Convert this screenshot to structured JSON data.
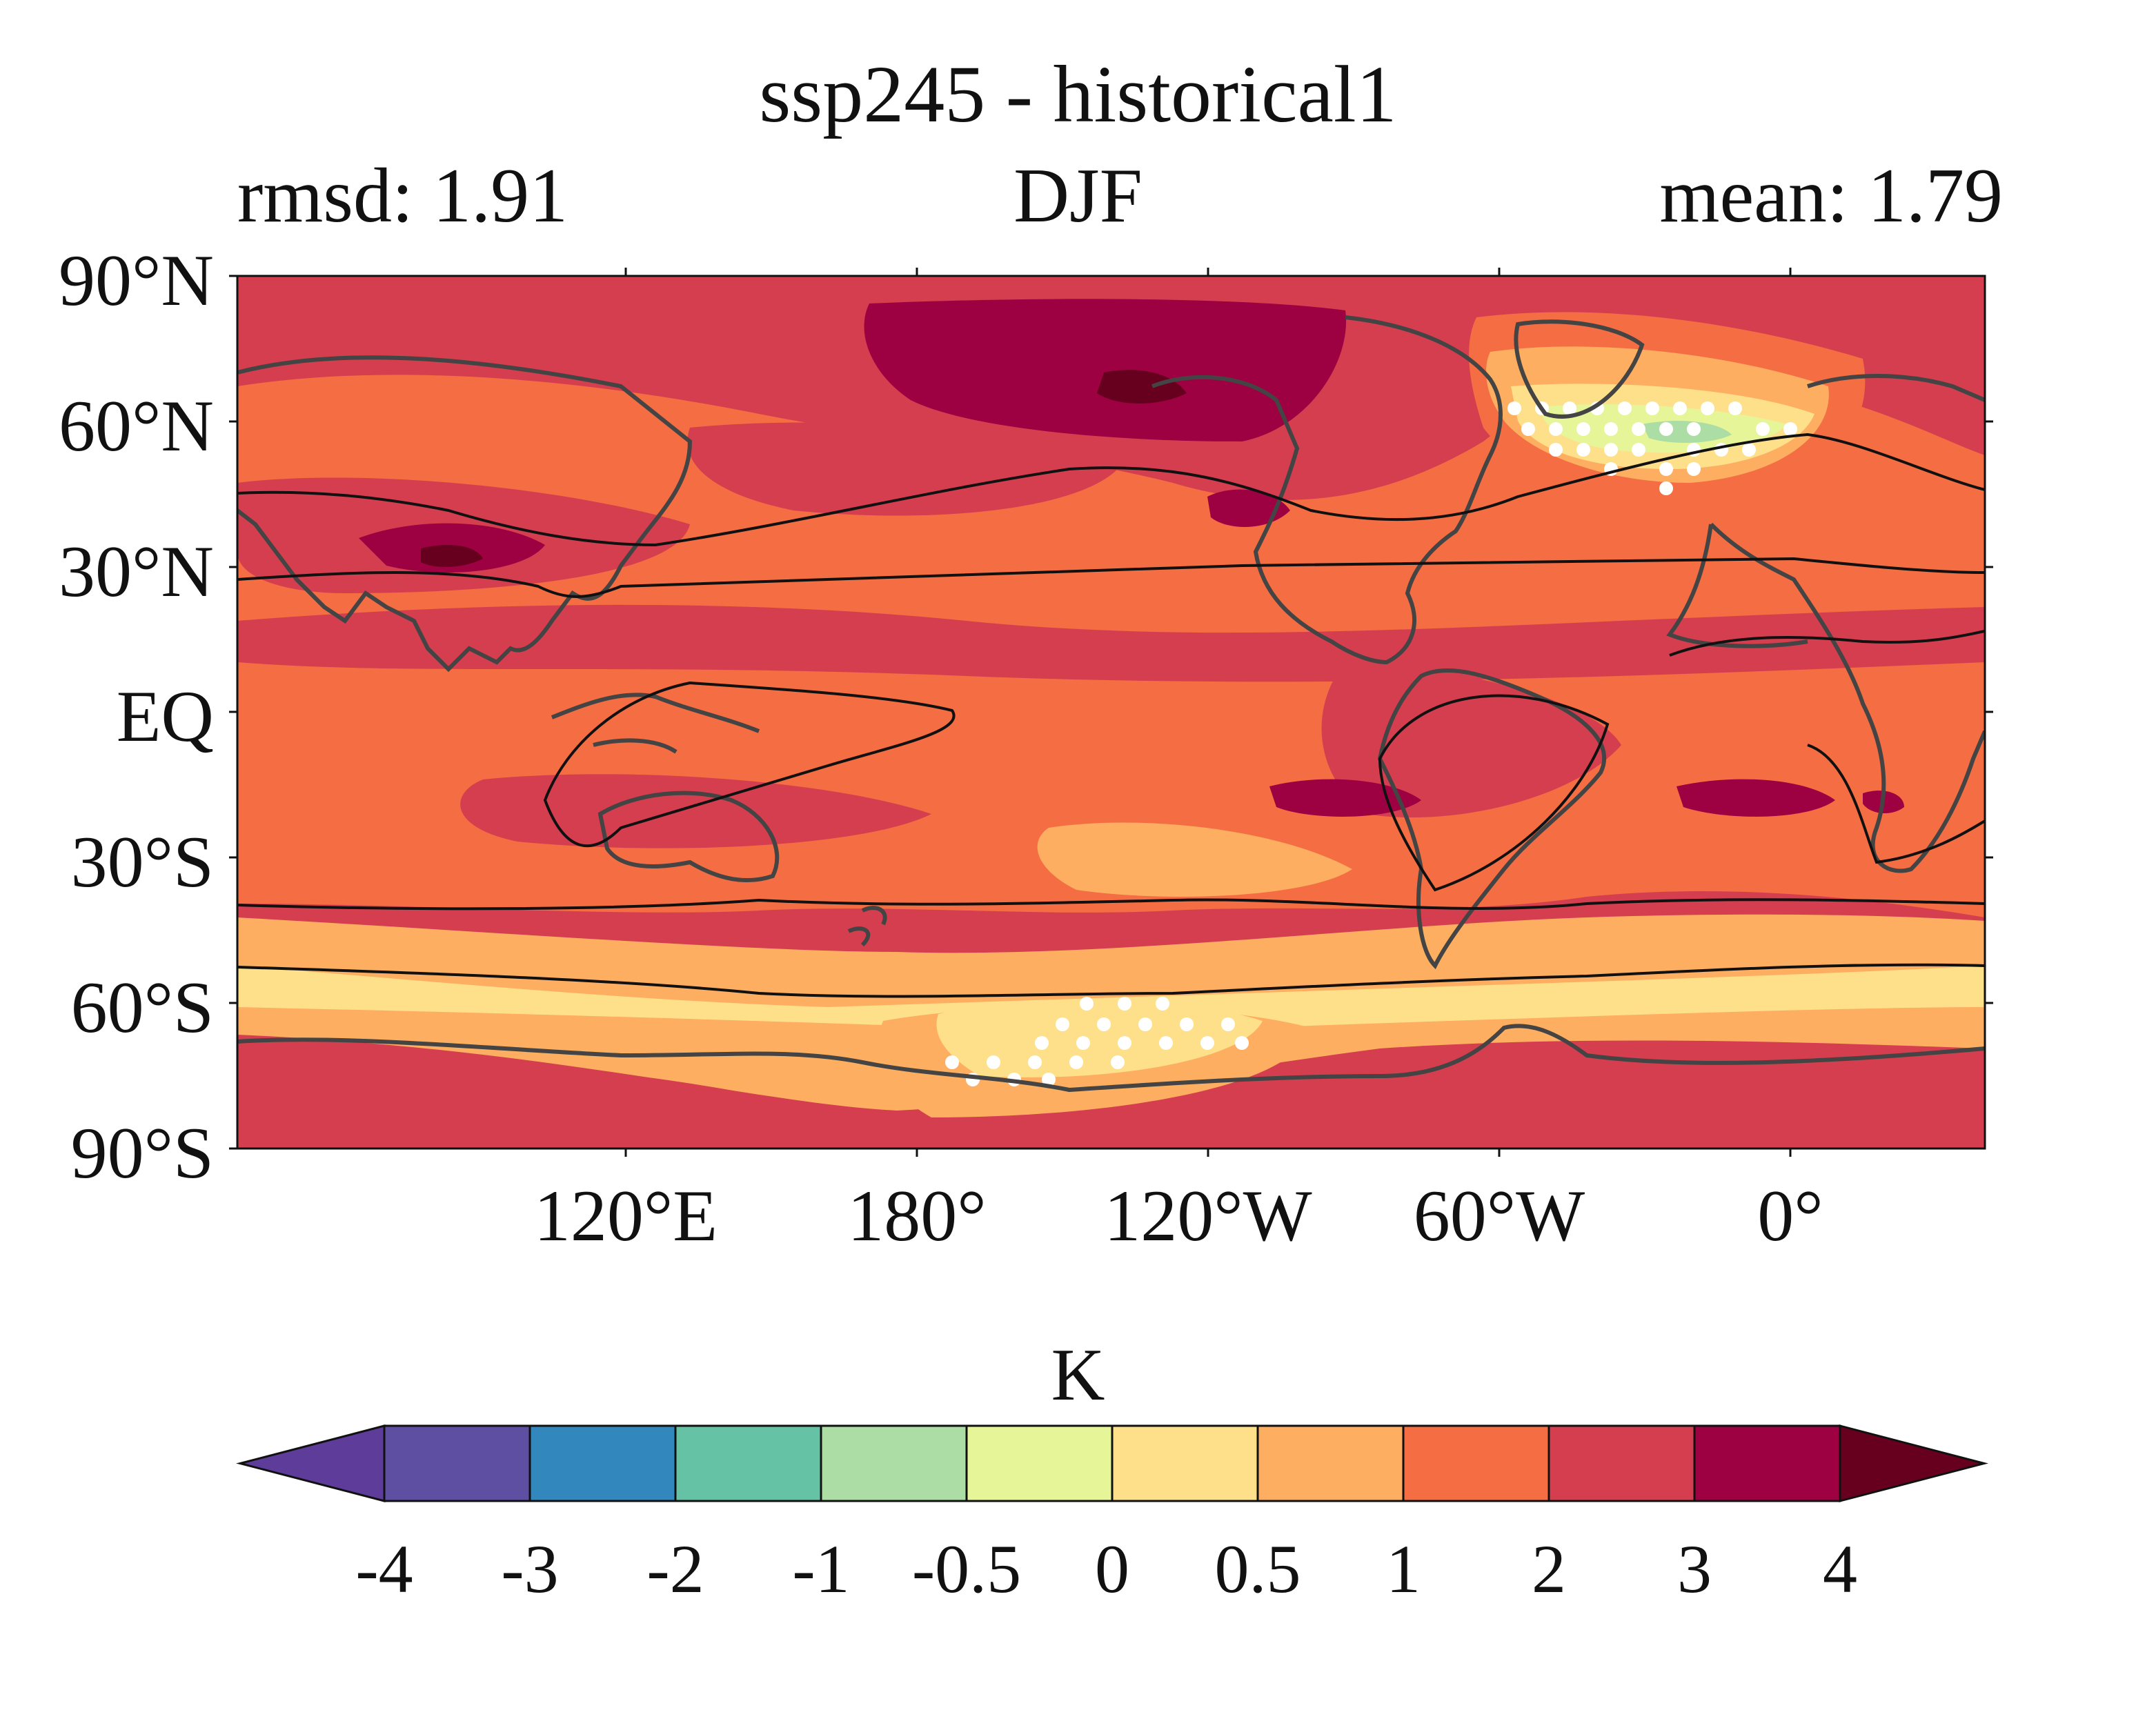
{
  "title": "ssp245 - historical1",
  "subtitle_left": "rmsd: 1.91",
  "subtitle_center": "DJF",
  "subtitle_right": "mean: 1.79",
  "lat_labels": [
    "90°N",
    "60°N",
    "30°N",
    "EQ",
    "30°S",
    "60°S",
    "90°S"
  ],
  "lon_labels": [
    "120°E",
    "180°",
    "120°W",
    "60°W",
    "0°"
  ],
  "colorbar": {
    "units": "K",
    "ticks": [
      "-4",
      "-3",
      "-2",
      "-1",
      "-0.5",
      "0",
      "0.5",
      "1",
      "2",
      "3",
      "4"
    ],
    "colors": [
      "#5e3c99",
      "#5e4fa2",
      "#3288bd",
      "#66c2a5",
      "#abdda4",
      "#e6f598",
      "#fee08b",
      "#fdae61",
      "#f46d43",
      "#d53e4f",
      "#9e0142",
      "#67001f"
    ]
  },
  "map": {
    "lon_range": [
      60,
      420
    ],
    "lat_range": [
      -90,
      90
    ],
    "background_level": "#d53e4f",
    "stippling": "white dots"
  }
}
